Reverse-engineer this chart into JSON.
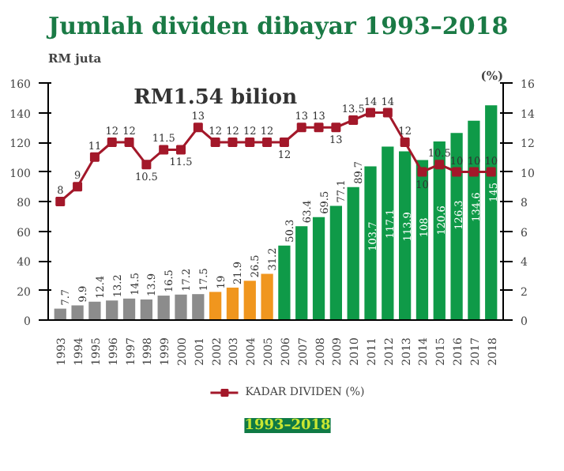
{
  "chart_data": {
    "type": "bar",
    "title": "Jumlah dividen dibayar 1993–2018",
    "subtitle": "RM1.54 bilion",
    "ylabel": "RM juta",
    "y2label": "(%)",
    "categories": [
      "1993",
      "1994",
      "1995",
      "1996",
      "1997",
      "1998",
      "1999",
      "2000",
      "2001",
      "2002",
      "2003",
      "2004",
      "2005",
      "2006",
      "2007",
      "2008",
      "2009",
      "2010",
      "2011",
      "2012",
      "2013",
      "2014",
      "2015",
      "2016",
      "2017",
      "2018"
    ],
    "series": [
      {
        "type": "bar",
        "colors": [
          "#8c8c8c",
          "#8c8c8c",
          "#8c8c8c",
          "#8c8c8c",
          "#8c8c8c",
          "#8c8c8c",
          "#8c8c8c",
          "#8c8c8c",
          "#8c8c8c",
          "#f0961e",
          "#f0961e",
          "#f0961e",
          "#f0961e",
          "#0f9a48",
          "#0f9a48",
          "#0f9a48",
          "#0f9a48",
          "#0f9a48",
          "#0f9a48",
          "#0f9a48",
          "#0f9a48",
          "#0f9a48",
          "#0f9a48",
          "#0f9a48",
          "#0f9a48",
          "#0f9a48"
        ],
        "values": [
          7.7,
          9.9,
          12.4,
          13.2,
          14.5,
          13.9,
          16.5,
          17.2,
          17.5,
          19,
          21.9,
          26.5,
          31.2,
          50.3,
          63.4,
          69.5,
          77.1,
          89.7,
          103.7,
          117.1,
          113.9,
          108,
          120.6,
          126.3,
          134.6,
          145
        ]
      },
      {
        "type": "line",
        "name": "KADAR DIVIDEN (%)",
        "color": "#a3182a",
        "axis": "y2",
        "values": [
          8,
          9,
          11,
          12,
          12,
          10.5,
          11.5,
          11.5,
          13,
          12,
          12,
          12,
          12,
          12,
          13,
          13,
          13,
          13.5,
          14,
          14,
          12,
          10,
          10.5,
          10,
          10,
          10
        ]
      }
    ],
    "ylim": [
      0,
      160
    ],
    "yticks": [
      0,
      20,
      40,
      60,
      80,
      100,
      120,
      140,
      160
    ],
    "y2lim": [
      0,
      16
    ],
    "y2ticks": [
      0,
      2,
      4,
      6,
      8,
      10,
      12,
      14,
      16
    ],
    "data_labels": true,
    "marker": "square",
    "legend": "bottom",
    "grid": false,
    "annotations": [
      "1993–2018"
    ]
  }
}
